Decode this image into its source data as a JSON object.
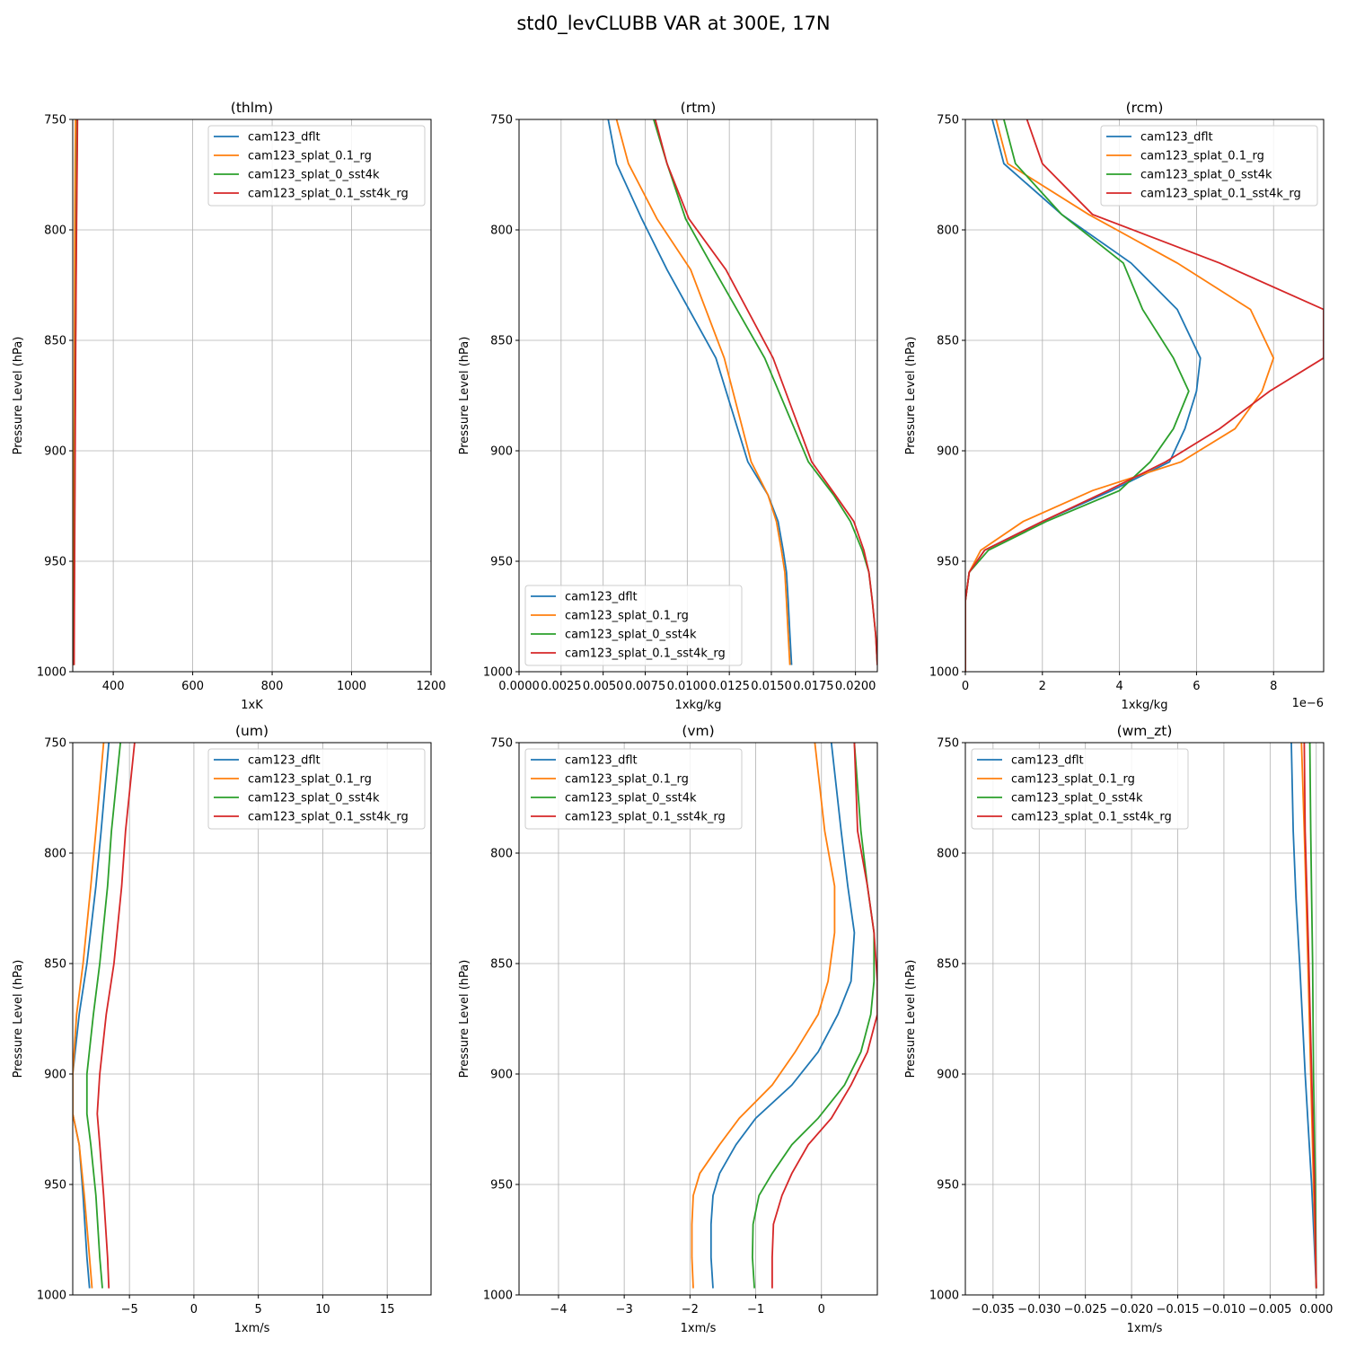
{
  "figure": {
    "title": "std0_levCLUBB VAR at 300E, 17N"
  },
  "colors": {
    "cam123_dflt": "#1f77b4",
    "cam123_splat_0.1_rg": "#ff7f0e",
    "cam123_splat_0_sst4k": "#2ca02c",
    "cam123_splat_0.1_sst4k_rg": "#d62728"
  },
  "chart_data": [
    {
      "type": "line",
      "title": "(thlm)",
      "xlabel": "1xK",
      "ylabel": "Pressure Level (hPa)",
      "xlim": [
        298,
        1200
      ],
      "ylim": [
        1000,
        750
      ],
      "xticks": [
        400,
        600,
        800,
        1000,
        1200
      ],
      "xtick_labels": [
        "400",
        "600",
        "800",
        "1000",
        "1200"
      ],
      "yticks": [
        750,
        800,
        850,
        900,
        950,
        1000
      ],
      "ytick_labels": [
        "750",
        "800",
        "850",
        "900",
        "950",
        "1000"
      ],
      "grid": true,
      "legend": "upper right",
      "series": [
        {
          "name": "cam123_dflt",
          "x": [
            300.5,
            301,
            302,
            303,
            304,
            305,
            306,
            307
          ],
          "y": [
            997,
            955,
            900,
            850,
            810,
            790,
            770,
            750
          ]
        },
        {
          "name": "cam123_splat_0.1_rg",
          "x": [
            300.3,
            300.6,
            301.5,
            302.5,
            303,
            303.5,
            304,
            305
          ],
          "y": [
            997,
            955,
            900,
            850,
            810,
            790,
            770,
            750
          ]
        },
        {
          "name": "cam123_splat_0_sst4k",
          "x": [
            301,
            302,
            303.5,
            305,
            306.5,
            307.5,
            308.5,
            309.5
          ],
          "y": [
            997,
            955,
            900,
            850,
            810,
            790,
            770,
            750
          ]
        },
        {
          "name": "cam123_splat_0.1_sst4k_rg",
          "x": [
            301.5,
            302.5,
            304,
            305.5,
            307,
            308,
            309,
            310
          ],
          "y": [
            997,
            955,
            900,
            850,
            810,
            790,
            770,
            750
          ]
        }
      ]
    },
    {
      "type": "line",
      "title": "(rtm)",
      "xlabel": "1xkg/kg",
      "ylabel": "Pressure Level (hPa)",
      "xlim": [
        0,
        0.0213
      ],
      "ylim": [
        1000,
        750
      ],
      "xticks": [
        0,
        0.0025,
        0.005,
        0.0075,
        0.01,
        0.0125,
        0.015,
        0.0175,
        0.02
      ],
      "xtick_labels": [
        "0.0000",
        "0.0025",
        "0.0050",
        "0.0075",
        "0.0100",
        "0.0125",
        "0.0150",
        "0.0175",
        "0.0200"
      ],
      "yticks": [
        750,
        800,
        850,
        900,
        950,
        1000
      ],
      "ytick_labels": [
        "750",
        "800",
        "850",
        "900",
        "950",
        "1000"
      ],
      "grid": true,
      "legend": "lower left",
      "series": [
        {
          "name": "cam123_dflt",
          "x": [
            0.0162,
            0.0161,
            0.016,
            0.0159,
            0.0157,
            0.0154,
            0.0148,
            0.0136,
            0.0117,
            0.0088,
            0.0073,
            0.0058,
            0.0053
          ],
          "y": [
            997,
            983,
            968,
            955,
            945,
            932,
            920,
            905,
            858,
            818,
            795,
            770,
            750
          ]
        },
        {
          "name": "cam123_splat_0.1_rg",
          "x": [
            0.0161,
            0.016,
            0.0159,
            0.0158,
            0.0156,
            0.0153,
            0.0148,
            0.0138,
            0.0122,
            0.0102,
            0.0082,
            0.0065,
            0.0058
          ],
          "y": [
            997,
            983,
            968,
            955,
            945,
            932,
            920,
            905,
            858,
            818,
            795,
            770,
            750
          ]
        },
        {
          "name": "cam123_splat_0_sst4k",
          "x": [
            0.0213,
            0.0212,
            0.021,
            0.0208,
            0.0204,
            0.0197,
            0.0187,
            0.0172,
            0.0146,
            0.0116,
            0.0099,
            0.0088,
            0.008
          ],
          "y": [
            997,
            983,
            968,
            955,
            945,
            932,
            920,
            905,
            858,
            818,
            795,
            770,
            750
          ]
        },
        {
          "name": "cam123_splat_0.1_sst4k_rg",
          "x": [
            0.0213,
            0.0212,
            0.021,
            0.0208,
            0.0205,
            0.0199,
            0.0188,
            0.0174,
            0.0151,
            0.0123,
            0.0101,
            0.0088,
            0.0081
          ],
          "y": [
            997,
            983,
            968,
            955,
            945,
            932,
            920,
            905,
            858,
            818,
            795,
            770,
            750
          ]
        }
      ]
    },
    {
      "type": "line",
      "title": "(rcm)",
      "xlabel": "1xkg/kg",
      "ylabel": "Pressure Level (hPa)",
      "offset_text": "1e−6",
      "xlim": [
        0,
        9.3
      ],
      "ylim": [
        1000,
        750
      ],
      "xticks": [
        0,
        2,
        4,
        6,
        8
      ],
      "xtick_labels": [
        "0",
        "2",
        "4",
        "6",
        "8"
      ],
      "yticks": [
        750,
        800,
        850,
        900,
        950,
        1000
      ],
      "ytick_labels": [
        "750",
        "800",
        "850",
        "900",
        "950",
        "1000"
      ],
      "grid": true,
      "legend": "upper right",
      "series": [
        {
          "name": "cam123_dflt",
          "x": [
            0,
            0,
            0.1,
            0.5,
            2,
            3.8,
            5.3,
            5.7,
            6.0,
            6.1,
            5.5,
            4.3,
            2.5,
            1.0,
            0.7
          ],
          "y": [
            1000,
            968,
            955,
            945,
            932,
            918,
            905,
            890,
            873,
            858,
            836,
            815,
            793,
            770,
            750
          ]
        },
        {
          "name": "cam123_splat_0.1_rg",
          "x": [
            0,
            0,
            0.1,
            0.4,
            1.5,
            3.3,
            5.6,
            7.0,
            7.7,
            8.0,
            7.4,
            5.5,
            3.2,
            1.1,
            0.8
          ],
          "y": [
            1000,
            968,
            955,
            945,
            932,
            918,
            905,
            890,
            873,
            858,
            836,
            815,
            793,
            770,
            750
          ]
        },
        {
          "name": "cam123_splat_0_sst4k",
          "x": [
            0,
            0,
            0.1,
            0.6,
            2.1,
            4.0,
            4.8,
            5.4,
            5.8,
            5.4,
            4.6,
            4.1,
            2.5,
            1.3,
            1.0
          ],
          "y": [
            1000,
            968,
            955,
            945,
            932,
            918,
            905,
            890,
            873,
            858,
            836,
            815,
            793,
            770,
            750
          ]
        },
        {
          "name": "cam123_splat_0.1_sst4k_rg",
          "x": [
            0,
            0,
            0.1,
            0.5,
            2.0,
            3.7,
            5.2,
            6.6,
            7.9,
            9.3,
            9.3,
            6.6,
            3.3,
            2.0,
            1.6
          ],
          "y": [
            1000,
            968,
            955,
            945,
            932,
            918,
            905,
            890,
            873,
            858,
            836,
            815,
            793,
            770,
            750
          ]
        }
      ]
    },
    {
      "type": "line",
      "title": "(um)",
      "xlabel": "1xm/s",
      "ylabel": "Pressure Level (hPa)",
      "xlim": [
        -9.4,
        18.4
      ],
      "ylim": [
        1000,
        750
      ],
      "xticks": [
        -5,
        0,
        5,
        10,
        15
      ],
      "xtick_labels": [
        "−5",
        "0",
        "5",
        "10",
        "15"
      ],
      "yticks": [
        750,
        800,
        850,
        900,
        950,
        1000
      ],
      "ytick_labels": [
        "750",
        "800",
        "850",
        "900",
        "950",
        "1000"
      ],
      "grid": true,
      "legend": "upper right",
      "series": [
        {
          "name": "cam123_dflt",
          "x": [
            -8.1,
            -8.3,
            -8.6,
            -8.9,
            -9.4,
            -9.4,
            -8.9,
            -8.3,
            -7.6,
            -7.2,
            -6.6
          ],
          "y": [
            997,
            983,
            955,
            932,
            918,
            900,
            873,
            850,
            815,
            790,
            750
          ]
        },
        {
          "name": "cam123_splat_0.1_rg",
          "x": [
            -7.9,
            -8.1,
            -8.5,
            -8.9,
            -9.4,
            -9.4,
            -9.1,
            -8.6,
            -8.0,
            -7.6,
            -7.0
          ],
          "y": [
            997,
            983,
            955,
            932,
            918,
            900,
            873,
            850,
            815,
            790,
            750
          ]
        },
        {
          "name": "cam123_splat_0_sst4k",
          "x": [
            -7.1,
            -7.3,
            -7.6,
            -8.0,
            -8.3,
            -8.3,
            -7.8,
            -7.3,
            -6.7,
            -6.4,
            -5.7
          ],
          "y": [
            997,
            983,
            955,
            932,
            918,
            900,
            873,
            850,
            815,
            790,
            750
          ]
        },
        {
          "name": "cam123_splat_0.1_sst4k_rg",
          "x": [
            -6.6,
            -6.7,
            -7.0,
            -7.3,
            -7.5,
            -7.3,
            -6.8,
            -6.2,
            -5.6,
            -5.3,
            -4.6
          ],
          "y": [
            997,
            983,
            955,
            932,
            918,
            900,
            873,
            850,
            815,
            790,
            750
          ]
        }
      ]
    },
    {
      "type": "line",
      "title": "(vm)",
      "xlabel": "1xm/s",
      "ylabel": "Pressure Level (hPa)",
      "xlim": [
        -4.6,
        0.85
      ],
      "ylim": [
        1000,
        750
      ],
      "xticks": [
        -4,
        -3,
        -2,
        -1,
        0
      ],
      "xtick_labels": [
        "−4",
        "−3",
        "−2",
        "−1",
        "0"
      ],
      "yticks": [
        750,
        800,
        850,
        900,
        950,
        1000
      ],
      "ytick_labels": [
        "750",
        "800",
        "850",
        "900",
        "950",
        "1000"
      ],
      "grid": true,
      "legend": "upper left",
      "series": [
        {
          "name": "cam123_dflt",
          "x": [
            -1.65,
            -1.68,
            -1.68,
            -1.65,
            -1.55,
            -1.3,
            -1.0,
            -0.45,
            -0.05,
            0.25,
            0.45,
            0.5,
            0.4,
            0.3,
            0.15
          ],
          "y": [
            997,
            983,
            968,
            955,
            945,
            932,
            920,
            905,
            890,
            873,
            858,
            836,
            815,
            790,
            750
          ]
        },
        {
          "name": "cam123_splat_0.1_rg",
          "x": [
            -1.95,
            -1.97,
            -1.97,
            -1.95,
            -1.85,
            -1.55,
            -1.25,
            -0.75,
            -0.4,
            -0.05,
            0.1,
            0.2,
            0.2,
            0.05,
            -0.1
          ],
          "y": [
            997,
            983,
            968,
            955,
            945,
            932,
            920,
            905,
            890,
            873,
            858,
            836,
            815,
            790,
            750
          ]
        },
        {
          "name": "cam123_splat_0_sst4k",
          "x": [
            -1.02,
            -1.05,
            -1.04,
            -0.95,
            -0.75,
            -0.45,
            -0.05,
            0.35,
            0.6,
            0.75,
            0.8,
            0.8,
            0.7,
            0.6,
            0.5
          ],
          "y": [
            997,
            983,
            968,
            955,
            945,
            932,
            920,
            905,
            890,
            873,
            858,
            836,
            815,
            790,
            750
          ]
        },
        {
          "name": "cam123_splat_0.1_sst4k_rg",
          "x": [
            -0.75,
            -0.75,
            -0.73,
            -0.6,
            -0.45,
            -0.2,
            0.15,
            0.45,
            0.7,
            0.85,
            0.85,
            0.8,
            0.7,
            0.55,
            0.5
          ],
          "y": [
            997,
            983,
            968,
            955,
            945,
            932,
            920,
            905,
            890,
            873,
            858,
            836,
            815,
            790,
            750
          ]
        }
      ]
    },
    {
      "type": "line",
      "title": "(wm_zt)",
      "xlabel": "1xm/s",
      "ylabel": "Pressure Level (hPa)",
      "xlim": [
        -0.038,
        0.0008
      ],
      "ylim": [
        1000,
        750
      ],
      "xticks": [
        -0.035,
        -0.03,
        -0.025,
        -0.02,
        -0.015,
        -0.01,
        -0.005,
        0
      ],
      "xtick_labels": [
        "−0.035",
        "−0.030",
        "−0.025",
        "−0.020",
        "−0.015",
        "−0.010",
        "−0.005",
        "0.000"
      ],
      "yticks": [
        750,
        800,
        850,
        900,
        950,
        1000
      ],
      "ytick_labels": [
        "750",
        "800",
        "850",
        "900",
        "950",
        "1000"
      ],
      "grid": true,
      "legend": "upper left",
      "series": [
        {
          "name": "cam123_dflt",
          "x": [
            0,
            -0.0005,
            -0.0012,
            -0.0018,
            -0.0022,
            -0.0025,
            -0.0027
          ],
          "y": [
            997,
            950,
            900,
            850,
            820,
            790,
            750
          ]
        },
        {
          "name": "cam123_splat_0.1_rg",
          "x": [
            0,
            -0.0003,
            -0.0006,
            -0.0009,
            -0.0011,
            -0.0013,
            -0.0016
          ],
          "y": [
            997,
            950,
            900,
            850,
            820,
            790,
            750
          ]
        },
        {
          "name": "cam123_splat_0_sst4k",
          "x": [
            0,
            -0.0001,
            -0.0003,
            -0.0004,
            -0.0005,
            -0.0006,
            -0.0007
          ],
          "y": [
            997,
            950,
            900,
            850,
            820,
            790,
            750
          ]
        },
        {
          "name": "cam123_splat_0.1_sst4k_rg",
          "x": [
            0,
            -0.0002,
            -0.0005,
            -0.0008,
            -0.001,
            -0.0012,
            -0.0013
          ],
          "y": [
            997,
            950,
            900,
            850,
            820,
            790,
            750
          ]
        }
      ]
    }
  ]
}
